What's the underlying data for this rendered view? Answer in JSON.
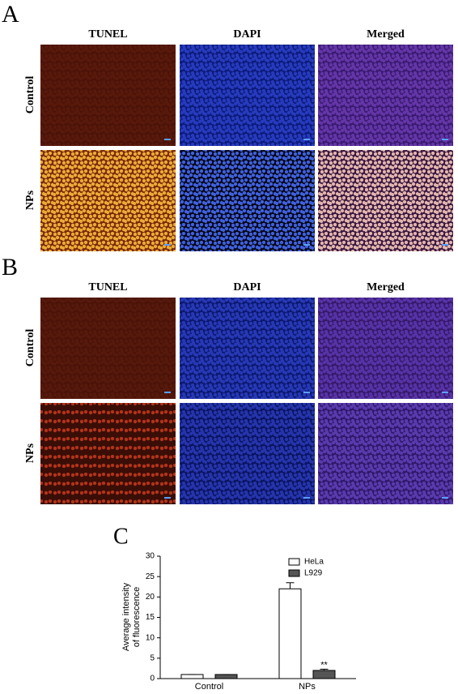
{
  "panels": [
    {
      "label": "A",
      "columns": [
        "TUNEL",
        "DAPI",
        "Merged"
      ],
      "rows": [
        "Control",
        "NPs"
      ]
    },
    {
      "label": "B",
      "columns": [
        "TUNEL",
        "DAPI",
        "Merged"
      ],
      "rows": [
        "Control",
        "NPs"
      ]
    }
  ],
  "chart_data": {
    "type": "bar",
    "label": "C",
    "y_label": [
      "Average intensity",
      "of fluorescence"
    ],
    "categories": [
      "Control",
      "NPs"
    ],
    "series": [
      {
        "name": "HeLa",
        "color": "#ffffff",
        "values": [
          1,
          22
        ],
        "errors": [
          0,
          1.5
        ]
      },
      {
        "name": "L929",
        "color": "#555555",
        "values": [
          1,
          2
        ],
        "errors": [
          0,
          0.3
        ]
      }
    ],
    "annotations": [
      {
        "text": "**",
        "category": 1,
        "series": 1
      }
    ],
    "ylim": [
      0,
      30
    ],
    "yticks": [
      0,
      5,
      10,
      15,
      20,
      25,
      30
    ]
  }
}
